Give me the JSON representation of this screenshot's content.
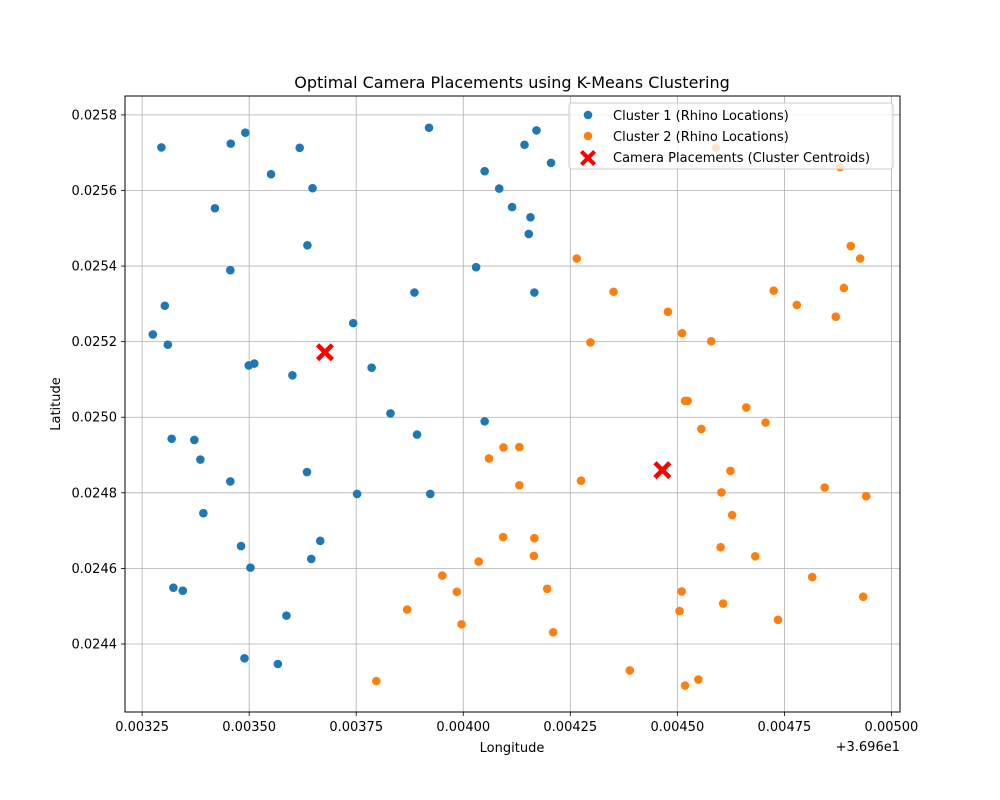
{
  "chart_data": {
    "type": "scatter",
    "title": "Optimal Camera Placements using K-Means Clustering",
    "xlabel": "Longitude",
    "ylabel": "Latitude",
    "x_offset_label": "+3.696e1",
    "xlim": [
      0.00321,
      0.00502
    ],
    "ylim": [
      0.02422,
      0.02585
    ],
    "xticks": [
      0.00325,
      0.0035,
      0.00375,
      0.004,
      0.00425,
      0.0045,
      0.00475,
      0.005
    ],
    "xtick_labels": [
      "0.00325",
      "0.00350",
      "0.00375",
      "0.00400",
      "0.00425",
      "0.00450",
      "0.00475",
      "0.00500"
    ],
    "yticks": [
      0.0244,
      0.0246,
      0.0248,
      0.025,
      0.0252,
      0.0254,
      0.0256,
      0.0258
    ],
    "ytick_labels": [
      "0.0244",
      "0.0246",
      "0.0248",
      "0.0250",
      "0.0252",
      "0.0254",
      "0.0256",
      "0.0258"
    ],
    "grid": true,
    "legend_position": "upper-right",
    "series": [
      {
        "name": "Cluster 1 (Rhino Locations)",
        "color": "#1f77b4",
        "marker": "circle",
        "points": [
          [
            0.003295,
            0.025714
          ],
          [
            0.003457,
            0.025724
          ],
          [
            0.003491,
            0.025753
          ],
          [
            0.003618,
            0.025713
          ],
          [
            0.00392,
            0.025766
          ],
          [
            0.004143,
            0.025721
          ],
          [
            0.004171,
            0.025759
          ],
          [
            0.004205,
            0.025673
          ],
          [
            0.003551,
            0.025643
          ],
          [
            0.003648,
            0.025606
          ],
          [
            0.00405,
            0.025651
          ],
          [
            0.004084,
            0.025605
          ],
          [
            0.00342,
            0.025553
          ],
          [
            0.004114,
            0.025556
          ],
          [
            0.004157,
            0.025529
          ],
          [
            0.004153,
            0.025485
          ],
          [
            0.003636,
            0.025455
          ],
          [
            0.003456,
            0.025389
          ],
          [
            0.00403,
            0.025397
          ],
          [
            0.003303,
            0.025295
          ],
          [
            0.003886,
            0.02533
          ],
          [
            0.004166,
            0.02533
          ],
          [
            0.003275,
            0.025219
          ],
          [
            0.00331,
            0.025192
          ],
          [
            0.003743,
            0.025249
          ],
          [
            0.003499,
            0.025137
          ],
          [
            0.003512,
            0.025142
          ],
          [
            0.003786,
            0.025131
          ],
          [
            0.003601,
            0.025111
          ],
          [
            0.00383,
            0.02501
          ],
          [
            0.00405,
            0.024989
          ],
          [
            0.003319,
            0.024943
          ],
          [
            0.003372,
            0.02494
          ],
          [
            0.003892,
            0.024954
          ],
          [
            0.003386,
            0.024888
          ],
          [
            0.003635,
            0.024855
          ],
          [
            0.003456,
            0.02483
          ],
          [
            0.003752,
            0.024797
          ],
          [
            0.003923,
            0.024797
          ],
          [
            0.003393,
            0.024746
          ],
          [
            0.003481,
            0.024659
          ],
          [
            0.003666,
            0.024673
          ],
          [
            0.003645,
            0.024625
          ],
          [
            0.003503,
            0.024602
          ],
          [
            0.003323,
            0.024549
          ],
          [
            0.003345,
            0.024541
          ],
          [
            0.003587,
            0.024475
          ],
          [
            0.003489,
            0.024362
          ],
          [
            0.003567,
            0.024347
          ]
        ]
      },
      {
        "name": "Cluster 2 (Rhino Locations)",
        "color": "#ff7f0e",
        "marker": "circle",
        "points": [
          [
            0.00459,
            0.025713
          ],
          [
            0.00488,
            0.025662
          ],
          [
            0.004905,
            0.025453
          ],
          [
            0.004927,
            0.02542
          ],
          [
            0.004265,
            0.02542
          ],
          [
            0.004351,
            0.025332
          ],
          [
            0.004725,
            0.025335
          ],
          [
            0.004889,
            0.025342
          ],
          [
            0.004779,
            0.025297
          ],
          [
            0.004478,
            0.025279
          ],
          [
            0.00487,
            0.025266
          ],
          [
            0.004511,
            0.025222
          ],
          [
            0.004297,
            0.025198
          ],
          [
            0.004579,
            0.025201
          ],
          [
            0.004518,
            0.025043
          ],
          [
            0.004524,
            0.025043
          ],
          [
            0.004661,
            0.025026
          ],
          [
            0.004706,
            0.024986
          ],
          [
            0.004556,
            0.024969
          ],
          [
            0.004094,
            0.02492
          ],
          [
            0.004131,
            0.024921
          ],
          [
            0.00406,
            0.024891
          ],
          [
            0.004624,
            0.024858
          ],
          [
            0.004275,
            0.024832
          ],
          [
            0.004131,
            0.02482
          ],
          [
            0.004844,
            0.024814
          ],
          [
            0.004603,
            0.024801
          ],
          [
            0.004941,
            0.024791
          ],
          [
            0.004628,
            0.024741
          ],
          [
            0.004093,
            0.024683
          ],
          [
            0.004166,
            0.02468
          ],
          [
            0.004601,
            0.024656
          ],
          [
            0.004165,
            0.024633
          ],
          [
            0.004682,
            0.024632
          ],
          [
            0.004036,
            0.024618
          ],
          [
            0.003951,
            0.024581
          ],
          [
            0.004815,
            0.024577
          ],
          [
            0.003985,
            0.024538
          ],
          [
            0.004196,
            0.024546
          ],
          [
            0.00451,
            0.024539
          ],
          [
            0.004934,
            0.024525
          ],
          [
            0.003869,
            0.024491
          ],
          [
            0.004607,
            0.024507
          ],
          [
            0.004505,
            0.024487
          ],
          [
            0.003996,
            0.024452
          ],
          [
            0.004735,
            0.024464
          ],
          [
            0.00421,
            0.024431
          ],
          [
            0.004389,
            0.02433
          ],
          [
            0.003797,
            0.024302
          ],
          [
            0.004549,
            0.024306
          ],
          [
            0.004518,
            0.02429
          ]
        ]
      },
      {
        "name": "Camera Placements (Cluster Centroids)",
        "color": "#ff0000",
        "marker": "X",
        "points": [
          [
            0.003677,
            0.025172
          ],
          [
            0.004465,
            0.02486
          ]
        ]
      }
    ]
  }
}
